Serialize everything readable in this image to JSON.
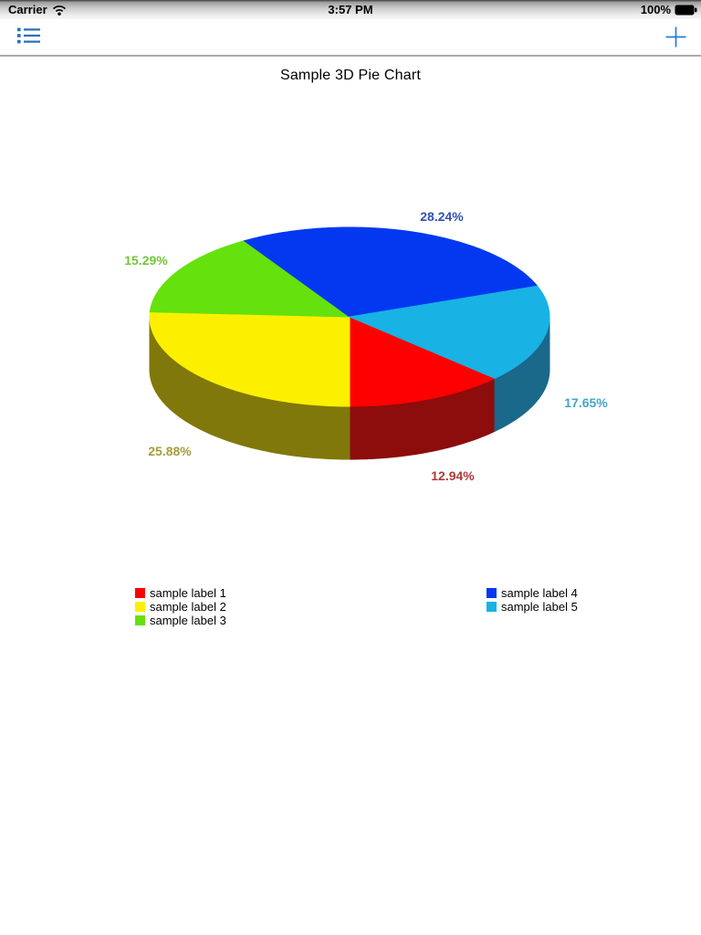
{
  "status_bar": {
    "carrier": "Carrier",
    "time": "3:57 PM",
    "battery_percent": "100%"
  },
  "toolbar": {
    "tint_color": "#2574c4",
    "list_icon_color": "#2b6fb7",
    "plus_icon_color": "#1e7cd9"
  },
  "chart_data": {
    "type": "pie",
    "style": "3d",
    "title": "Sample 3D Pie Chart",
    "start_angle_deg": -43.41,
    "direction": "clockwise",
    "legend": {
      "position": "bottom",
      "columns": 2
    },
    "slices": [
      {
        "label": "sample label 1",
        "percent": 12.94,
        "percent_label": "12.94%",
        "color": "#fe0000",
        "side_color": "#8d0c0c",
        "label_color": "#af3a3a"
      },
      {
        "label": "sample label 2",
        "percent": 25.88,
        "percent_label": "25.88%",
        "color": "#fcf000",
        "side_color": "#80780a",
        "label_color": "#a79d3c"
      },
      {
        "label": "sample label 3",
        "percent": 15.29,
        "percent_label": "15.29%",
        "color": "#65e10e",
        "label_color": "#76c53c"
      },
      {
        "label": "sample label 4",
        "percent": 28.24,
        "percent_label": "28.24%",
        "color": "#0338f0",
        "label_color": "#3350b4"
      },
      {
        "label": "sample label 5",
        "percent": 17.65,
        "percent_label": "17.65%",
        "color": "#18b2e5",
        "side_color": "#1a688a",
        "label_color": "#44a3cc"
      }
    ]
  }
}
